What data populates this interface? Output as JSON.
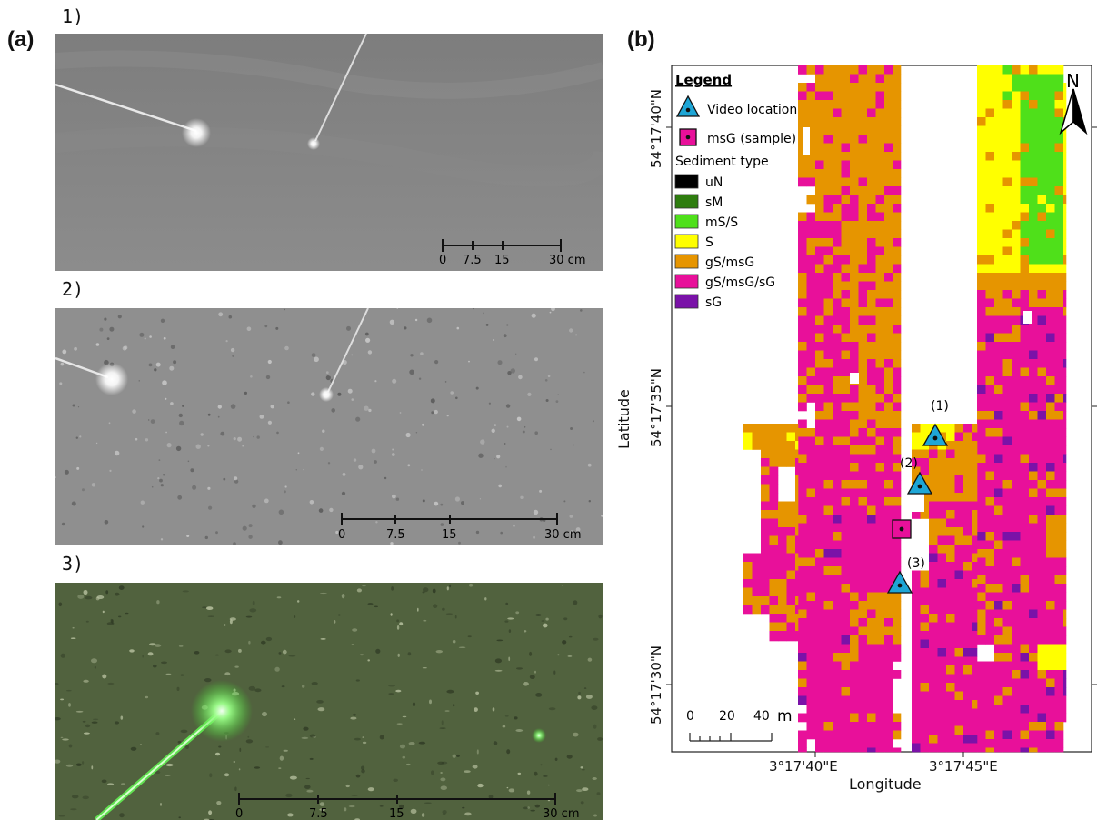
{
  "panel_a": {
    "label": "(a)",
    "photos": [
      {
        "number": "1)",
        "scale_ticks": [
          "0",
          "7.5",
          "15",
          "30 cm"
        ]
      },
      {
        "number": "2)",
        "scale_ticks": [
          "0",
          "7.5",
          "15",
          "30 cm"
        ]
      },
      {
        "number": "3)",
        "scale_ticks": [
          "0",
          "7.5",
          "15",
          "30 cm"
        ]
      }
    ]
  },
  "panel_b": {
    "label": "(b)",
    "legend": {
      "title": "Legend",
      "video_location": "Video location",
      "sample": "msG (sample)",
      "sediment_title": "Sediment type",
      "sediment_types": [
        {
          "name": "uN",
          "color": "#000000"
        },
        {
          "name": "sM",
          "color": "#2e7d0f"
        },
        {
          "name": "mS/S",
          "color": "#4fe01a"
        },
        {
          "name": "S",
          "color": "#ffff00"
        },
        {
          "name": "gS/msG",
          "color": "#e69500"
        },
        {
          "name": "gS/msG/sG",
          "color": "#e8109a"
        },
        {
          "name": "sG",
          "color": "#7a12a8"
        }
      ]
    },
    "north_label": "N",
    "scale_bar": {
      "ticks": [
        "0",
        "20",
        "40"
      ],
      "unit": "m"
    },
    "lat_labels": [
      "54°17'40\"N",
      "54°17'35\"N",
      "54°17'30\"N"
    ],
    "lon_labels": [
      "3°17'40\"E",
      "3°17'45\"E"
    ],
    "x_axis_title": "Longitude",
    "y_axis_title": "Latitude",
    "video_markers": [
      "(1)",
      "(2)",
      "(3)"
    ],
    "colors": {
      "video_marker": "#1ea6d6",
      "sample_marker": "#e8109a"
    }
  }
}
